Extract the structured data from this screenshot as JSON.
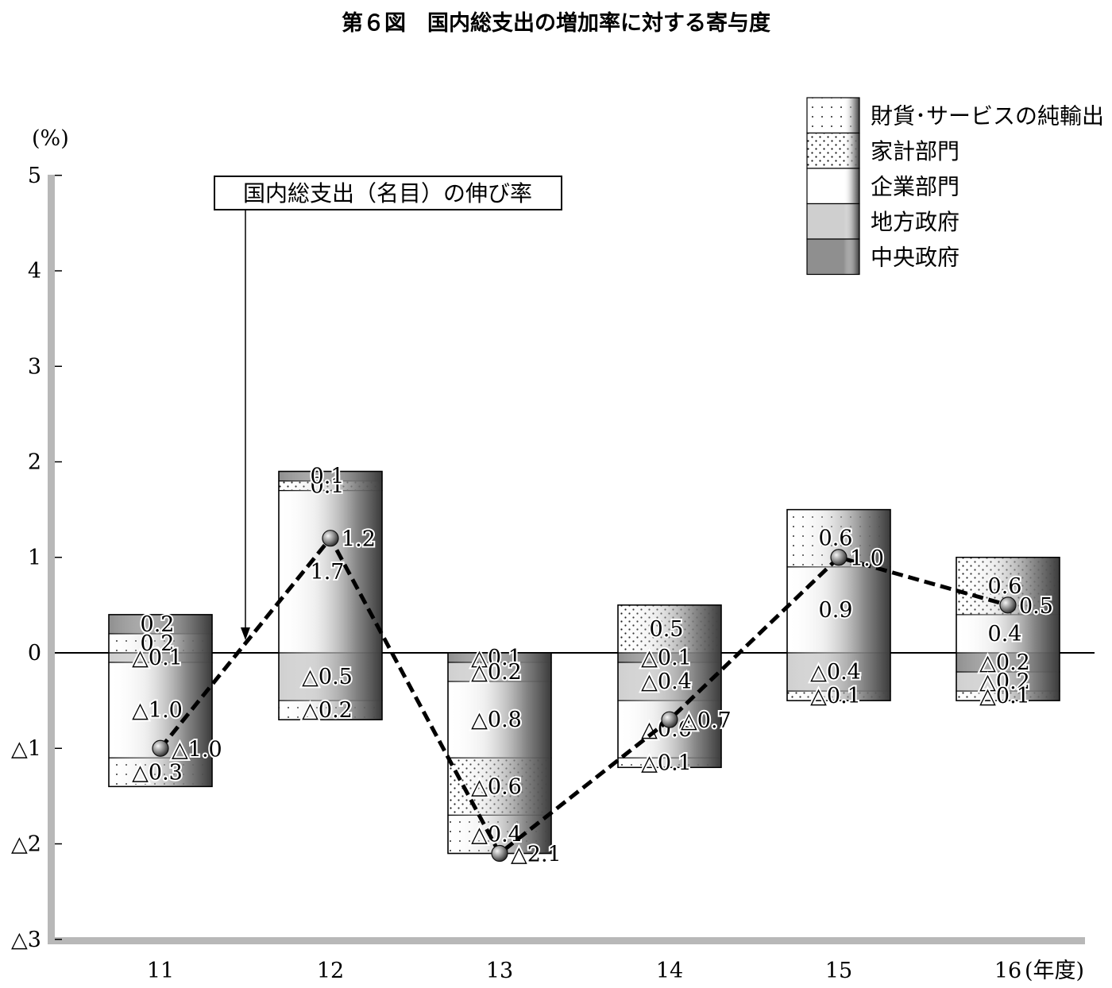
{
  "title": "第６図　国内総支出の増加率に対する寄与度",
  "chart_data": {
    "type": "bar",
    "stacked": true,
    "y_unit": "(%)",
    "x_unit": "(年度)",
    "ylim": [
      -3,
      5
    ],
    "y_ticks": [
      5,
      4,
      3,
      2,
      1,
      0,
      -1,
      -2,
      -3
    ],
    "y_tick_labels": [
      "5",
      "4",
      "3",
      "2",
      "1",
      "0",
      "△1",
      "△2",
      "△3"
    ],
    "categories": [
      "11",
      "12",
      "13",
      "14",
      "15",
      "16"
    ],
    "legend": [
      {
        "key": "net_exports",
        "label": "財貨･サービスの純輸出",
        "pattern": "dots-sparse"
      },
      {
        "key": "household",
        "label": "家計部門",
        "pattern": "dots-dense"
      },
      {
        "key": "corporate",
        "label": "企業部門",
        "pattern": "white"
      },
      {
        "key": "local_gov",
        "label": "地方政府",
        "pattern": "light-gray"
      },
      {
        "key": "central_gov",
        "label": "中央政府",
        "pattern": "dark-gray"
      }
    ],
    "bars": [
      {
        "year": "11",
        "segments": [
          {
            "series": "net_exports",
            "value": 0.2,
            "label": "0.2"
          },
          {
            "series": "central_gov",
            "value": 0.2,
            "label": "0.2"
          },
          {
            "series": "local_gov",
            "value": -0.1,
            "label": "△0.1"
          },
          {
            "series": "corporate",
            "value": -1.0,
            "label": "△1.0"
          },
          {
            "series": "net_exports",
            "value": -0.3,
            "label": "△0.3"
          }
        ]
      },
      {
        "year": "12",
        "segments": [
          {
            "series": "corporate",
            "value": 1.7,
            "label": "1.7"
          },
          {
            "series": "household",
            "value": 0.1,
            "label": "0.1"
          },
          {
            "series": "central_gov",
            "value": 0.1,
            "label": "0.1"
          },
          {
            "series": "local_gov",
            "value": -0.5,
            "label": "△0.5"
          },
          {
            "series": "net_exports",
            "value": -0.2,
            "label": "△0.2"
          }
        ]
      },
      {
        "year": "13",
        "segments": [
          {
            "series": "central_gov",
            "value": -0.1,
            "label": "△0.1"
          },
          {
            "series": "local_gov",
            "value": -0.2,
            "label": "△0.2"
          },
          {
            "series": "corporate",
            "value": -0.8,
            "label": "△0.8"
          },
          {
            "series": "household",
            "value": -0.6,
            "label": "△0.6"
          },
          {
            "series": "net_exports",
            "value": -0.4,
            "label": "△0.4"
          }
        ]
      },
      {
        "year": "14",
        "segments": [
          {
            "series": "household",
            "value": 0.5,
            "label": "0.5"
          },
          {
            "series": "central_gov",
            "value": -0.1,
            "label": "△0.1"
          },
          {
            "series": "local_gov",
            "value": -0.4,
            "label": "△0.4"
          },
          {
            "series": "corporate",
            "value": -0.6,
            "label": "△0.6"
          },
          {
            "series": "net_exports",
            "value": -0.1,
            "label": "△0.1"
          }
        ]
      },
      {
        "year": "15",
        "segments": [
          {
            "series": "corporate",
            "value": 0.9,
            "label": "0.9"
          },
          {
            "series": "net_exports",
            "value": 0.6,
            "label": "0.6"
          },
          {
            "series": "local_gov",
            "value": -0.4,
            "label": "△0.4"
          },
          {
            "series": "household",
            "value": -0.1,
            "label": "△0.1"
          }
        ]
      },
      {
        "year": "16",
        "segments": [
          {
            "series": "corporate",
            "value": 0.4,
            "label": "0.4"
          },
          {
            "series": "household",
            "value": 0.6,
            "label": "0.6"
          },
          {
            "series": "central_gov",
            "value": -0.2,
            "label": "△0.2"
          },
          {
            "series": "local_gov",
            "value": -0.2,
            "label": "△0.2"
          },
          {
            "series": "household",
            "value": -0.1,
            "label": "△0.1"
          }
        ]
      }
    ],
    "line": {
      "label": "国内総支出（名目）の伸び率",
      "values": [
        -1.0,
        1.2,
        -2.1,
        -0.7,
        1.0,
        0.5
      ],
      "point_labels": [
        "△1.0",
        "1.2",
        "△2.1",
        "△0.7",
        "1.0",
        "0.5"
      ],
      "style": "dashed-black"
    }
  }
}
